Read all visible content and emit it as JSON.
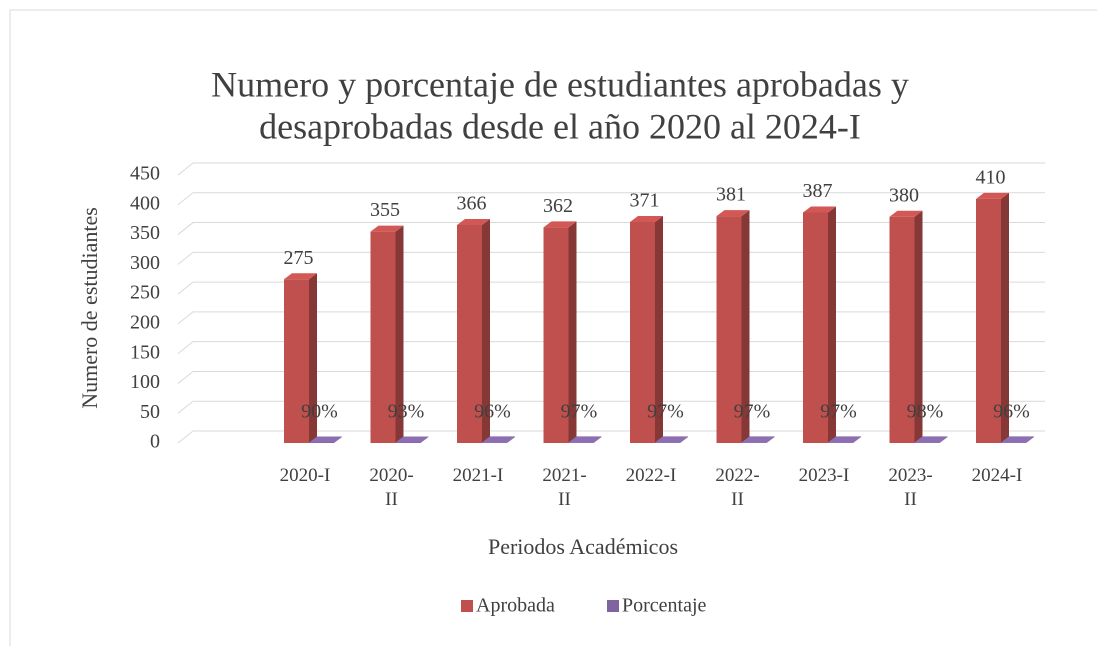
{
  "chart_data": {
    "type": "bar3d",
    "title": [
      "Numero  y porcentaje de estudiantes aprobadas y",
      "desaprobadas  desde el año 2020 al 2024-I"
    ],
    "x_label": "Periodos Académicos",
    "y_label": "Numero de estudiantes",
    "categories": [
      "2020-I",
      "2020-II",
      "2021-I",
      "2021-II",
      "2022-I",
      "2022-II",
      "2023-I",
      "2023-II",
      "2024-I"
    ],
    "series": [
      {
        "name": "Aprobada",
        "color": "#c0504d",
        "values": [
          275,
          355,
          366,
          362,
          371,
          381,
          387,
          380,
          410
        ]
      },
      {
        "name": "Porcentaje",
        "color": "#8064a2",
        "values": [
          0.9,
          0.93,
          0.96,
          0.97,
          0.97,
          0.97,
          0.97,
          0.98,
          0.96
        ],
        "value_labels": [
          "90%",
          "93%",
          "96%",
          "97%",
          "97%",
          "97%",
          "97%",
          "98%",
          "96%"
        ]
      }
    ],
    "ylim": [
      0,
      450
    ],
    "yticks": [
      0,
      50,
      100,
      150,
      200,
      250,
      300,
      350,
      400,
      450
    ],
    "grid": true,
    "legend": "bottom"
  }
}
